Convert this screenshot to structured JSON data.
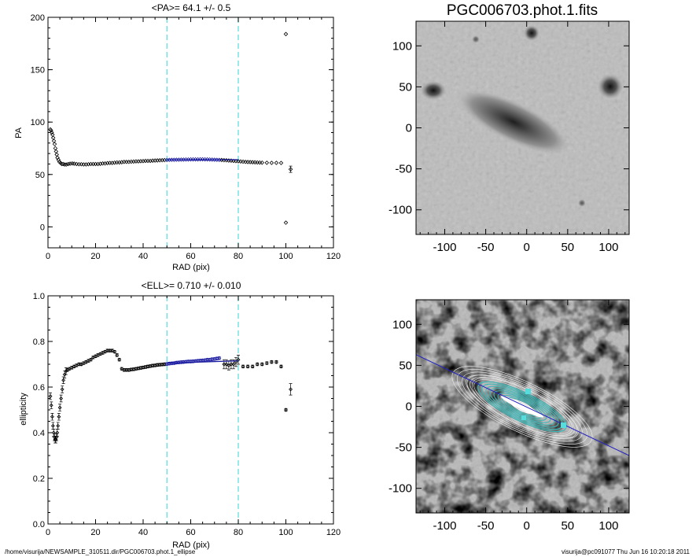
{
  "footer": {
    "path": "/home/visurija/NEWSAMPLE_310511.dir/PGC006703.phot.1_ellipse",
    "user_stamp": "visurija@pc091077  Thu Jun 16 10:20:18 2011"
  },
  "colors": {
    "fit_line": "#1a1aa0",
    "guide_line": "#55dddd",
    "contour_cyan": "#3ab8b8"
  },
  "chart_data": [
    {
      "type": "scatter",
      "title": "<PA>=  64.1 +/-   0.5",
      "xlabel": "RAD (pix)",
      "ylabel": "PA",
      "xlim": [
        0,
        120
      ],
      "ylim": [
        -20,
        200
      ],
      "xticks": [
        0,
        20,
        40,
        60,
        80,
        100,
        120
      ],
      "yticks": [
        0,
        50,
        100,
        150,
        200
      ],
      "vlines": [
        50,
        80
      ],
      "fit_segment": {
        "x": [
          50,
          80
        ],
        "y": [
          64.1,
          64.1
        ]
      },
      "points": [
        [
          1,
          93
        ],
        [
          1.3,
          92
        ],
        [
          1.6,
          90
        ],
        [
          1.9,
          88
        ],
        [
          2.2,
          85
        ],
        [
          2.5,
          82
        ],
        [
          2.8,
          79
        ],
        [
          3.1,
          75
        ],
        [
          3.4,
          72
        ],
        [
          3.7,
          69
        ],
        [
          4,
          66
        ],
        [
          4.4,
          64
        ],
        [
          4.8,
          62
        ],
        [
          5.3,
          61
        ],
        [
          5.8,
          60
        ],
        [
          6.4,
          60
        ],
        [
          7,
          59.5
        ],
        [
          7.7,
          59.5
        ],
        [
          8.5,
          60
        ],
        [
          9.3,
          60.3
        ],
        [
          10.2,
          60.5
        ],
        [
          11,
          60.3
        ],
        [
          12,
          60
        ],
        [
          13,
          59.8
        ],
        [
          14,
          59.8
        ],
        [
          15,
          59.6
        ],
        [
          16,
          59.6
        ],
        [
          17,
          59.8
        ],
        [
          18,
          60
        ],
        [
          19,
          60
        ],
        [
          20,
          60
        ],
        [
          21,
          60
        ],
        [
          22,
          60.2
        ],
        [
          23,
          60.5
        ],
        [
          24,
          60.5
        ],
        [
          25,
          60.8
        ],
        [
          26,
          61
        ],
        [
          27,
          61
        ],
        [
          28,
          61.3
        ],
        [
          29,
          61.5
        ],
        [
          30,
          61.5
        ],
        [
          31,
          61.7
        ],
        [
          32,
          62
        ],
        [
          33,
          62
        ],
        [
          34,
          62
        ],
        [
          35,
          62.2
        ],
        [
          36,
          62.3
        ],
        [
          37,
          62.5
        ],
        [
          38,
          62.5
        ],
        [
          39,
          62.7
        ],
        [
          40,
          62.8
        ],
        [
          41,
          63
        ],
        [
          42,
          63
        ],
        [
          43,
          63
        ],
        [
          44,
          63.2
        ],
        [
          45,
          63.3
        ],
        [
          46,
          63.4
        ],
        [
          47,
          63.5
        ],
        [
          48,
          63.6
        ],
        [
          49,
          63.7
        ],
        [
          50,
          63.8
        ],
        [
          51,
          63.9
        ],
        [
          52,
          64
        ],
        [
          53,
          64
        ],
        [
          54,
          64.1
        ],
        [
          55,
          64.1
        ],
        [
          56,
          64.2
        ],
        [
          57,
          64.2
        ],
        [
          58,
          64.3
        ],
        [
          59,
          64.3
        ],
        [
          60,
          64.4
        ],
        [
          61,
          64.4
        ],
        [
          62,
          64.4
        ],
        [
          63,
          64.4
        ],
        [
          64,
          64.5
        ],
        [
          65,
          64.5
        ],
        [
          66,
          64.4
        ],
        [
          67,
          64.4
        ],
        [
          68,
          64.3
        ],
        [
          69,
          64.2
        ],
        [
          70,
          64.1
        ],
        [
          71,
          64
        ],
        [
          72,
          63.9
        ],
        [
          73,
          63.8
        ],
        [
          74,
          63.6
        ],
        [
          75,
          63.5
        ],
        [
          76,
          63.3
        ],
        [
          77,
          63.2
        ],
        [
          78,
          63
        ],
        [
          79,
          62.8
        ],
        [
          80,
          62.6
        ],
        [
          81,
          62.4
        ],
        [
          82,
          62.2
        ],
        [
          83,
          62
        ],
        [
          84,
          61.9
        ],
        [
          85,
          61.8
        ],
        [
          86,
          61.7
        ],
        [
          87,
          61.6
        ],
        [
          88,
          61.5
        ],
        [
          89,
          61.4
        ],
        [
          90,
          61.3
        ],
        [
          92,
          61.2
        ],
        [
          94,
          61.1
        ],
        [
          96,
          61.1
        ],
        [
          98,
          61
        ],
        [
          100,
          184
        ],
        [
          100,
          4
        ],
        [
          102,
          55
        ]
      ]
    },
    {
      "type": "scatter",
      "title": "<ELL>= 0.710 +/-  0.010",
      "xlabel": "RAD (pix)",
      "ylabel": "ellipticity",
      "xlim": [
        0,
        120
      ],
      "ylim": [
        0.0,
        1.0
      ],
      "xticks": [
        0,
        20,
        40,
        60,
        80,
        100,
        120
      ],
      "yticks": [
        0.0,
        0.2,
        0.4,
        0.6,
        0.8,
        1.0
      ],
      "vlines": [
        50,
        80
      ],
      "fit_segment": {
        "x": [
          50,
          80
        ],
        "y": [
          0.705,
          0.715
        ]
      },
      "points": [
        [
          1,
          0.56
        ],
        [
          1.4,
          0.52
        ],
        [
          1.8,
          0.47
        ],
        [
          2.1,
          0.43
        ],
        [
          2.4,
          0.4
        ],
        [
          2.7,
          0.38
        ],
        [
          3,
          0.37
        ],
        [
          3.3,
          0.37
        ],
        [
          3.6,
          0.38
        ],
        [
          3.9,
          0.4
        ],
        [
          4.2,
          0.43
        ],
        [
          4.6,
          0.47
        ],
        [
          5,
          0.51
        ],
        [
          5.5,
          0.55
        ],
        [
          6,
          0.59
        ],
        [
          6.5,
          0.63
        ],
        [
          7,
          0.655
        ],
        [
          7.6,
          0.67
        ],
        [
          8.2,
          0.675
        ],
        [
          9,
          0.68
        ],
        [
          10,
          0.685
        ],
        [
          11,
          0.69
        ],
        [
          12,
          0.695
        ],
        [
          13,
          0.7
        ],
        [
          14,
          0.7
        ],
        [
          15,
          0.705
        ],
        [
          16,
          0.71
        ],
        [
          17,
          0.715
        ],
        [
          18,
          0.72
        ],
        [
          19,
          0.73
        ],
        [
          20,
          0.735
        ],
        [
          21,
          0.74
        ],
        [
          22,
          0.745
        ],
        [
          23,
          0.75
        ],
        [
          24,
          0.755
        ],
        [
          25,
          0.76
        ],
        [
          26,
          0.76
        ],
        [
          27,
          0.76
        ],
        [
          28,
          0.755
        ],
        [
          29,
          0.74
        ],
        [
          30,
          0.72
        ],
        [
          31,
          0.68
        ],
        [
          32,
          0.675
        ],
        [
          33,
          0.675
        ],
        [
          34,
          0.675
        ],
        [
          35,
          0.677
        ],
        [
          36,
          0.678
        ],
        [
          37,
          0.68
        ],
        [
          38,
          0.682
        ],
        [
          39,
          0.684
        ],
        [
          40,
          0.686
        ],
        [
          41,
          0.688
        ],
        [
          42,
          0.69
        ],
        [
          43,
          0.692
        ],
        [
          44,
          0.694
        ],
        [
          45,
          0.695
        ],
        [
          46,
          0.697
        ],
        [
          47,
          0.698
        ],
        [
          48,
          0.699
        ],
        [
          49,
          0.7
        ],
        [
          50,
          0.701
        ],
        [
          51,
          0.703
        ],
        [
          52,
          0.704
        ],
        [
          53,
          0.705
        ],
        [
          54,
          0.707
        ],
        [
          55,
          0.708
        ],
        [
          56,
          0.709
        ],
        [
          57,
          0.71
        ],
        [
          58,
          0.711
        ],
        [
          59,
          0.712
        ],
        [
          60,
          0.712
        ],
        [
          61,
          0.713
        ],
        [
          62,
          0.714
        ],
        [
          63,
          0.715
        ],
        [
          64,
          0.716
        ],
        [
          65,
          0.717
        ],
        [
          66,
          0.718
        ],
        [
          67,
          0.72
        ],
        [
          68,
          0.72
        ],
        [
          69,
          0.722
        ],
        [
          70,
          0.723
        ],
        [
          71,
          0.725
        ],
        [
          72,
          0.727
        ],
        [
          74,
          0.7
        ],
        [
          75,
          0.7
        ],
        [
          76,
          0.695
        ],
        [
          77,
          0.7
        ],
        [
          78,
          0.7
        ],
        [
          79,
          0.71
        ],
        [
          80,
          0.72
        ],
        [
          82,
          0.69
        ],
        [
          84,
          0.69
        ],
        [
          86,
          0.69
        ],
        [
          88,
          0.7
        ],
        [
          90,
          0.7
        ],
        [
          92,
          0.705
        ],
        [
          94,
          0.71
        ],
        [
          96,
          0.71
        ],
        [
          98,
          0.69
        ],
        [
          100,
          0.5
        ],
        [
          102,
          0.59
        ]
      ]
    },
    {
      "type": "heatmap",
      "title": "PGC006703.phot.1.fits",
      "xlim": [
        -135,
        125
      ],
      "ylim": [
        -130,
        130
      ],
      "xticks": [
        -100,
        -50,
        0,
        50,
        100
      ],
      "yticks": [
        -100,
        -50,
        0,
        50,
        100
      ]
    },
    {
      "type": "heatmap",
      "title": "",
      "xlim": [
        -135,
        125
      ],
      "ylim": [
        -130,
        130
      ],
      "xticks": [
        -100,
        -50,
        0,
        50,
        100
      ],
      "yticks": [
        -100,
        -50,
        0,
        50,
        100
      ],
      "major_axis_line": {
        "x": [
          -135,
          125
        ],
        "y": [
          63,
          -60
        ]
      }
    }
  ]
}
